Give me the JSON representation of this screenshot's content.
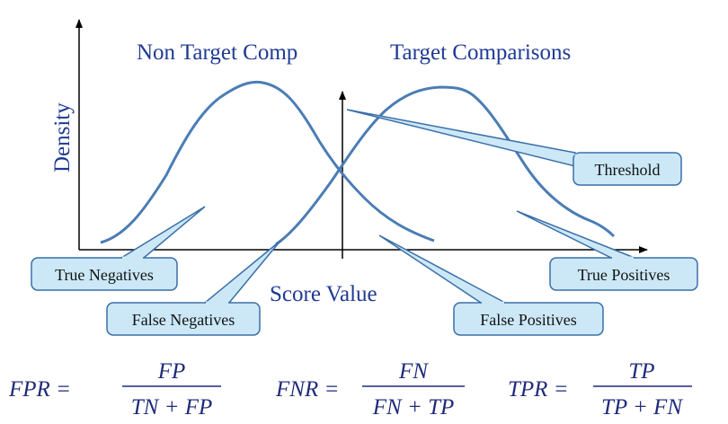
{
  "diagram": {
    "titles": {
      "non_target": "Non Target Comp",
      "target": "Target Comparisons"
    },
    "axes": {
      "ylabel": "Density",
      "xlabel": "Score Value"
    },
    "callouts": {
      "threshold": "Threshold",
      "true_negatives": "True Negatives",
      "false_negatives": "False Negatives",
      "false_positives": "False Positives",
      "true_positives": "True Positives"
    },
    "formulas": {
      "fpr": {
        "lhs": "FPR =",
        "num": "FP",
        "den": "TN + FP"
      },
      "fnr": {
        "lhs": "FNR =",
        "num": "FN",
        "den": "FN + TP"
      },
      "tpr": {
        "lhs": "TPR =",
        "num": "TP",
        "den": "TP + FN"
      }
    },
    "colors": {
      "curve": "#4a7db5",
      "text": "#1f3a93",
      "callout_fill": "#cce8f7",
      "callout_stroke": "#3a6fa8",
      "axis": "#000000"
    }
  }
}
